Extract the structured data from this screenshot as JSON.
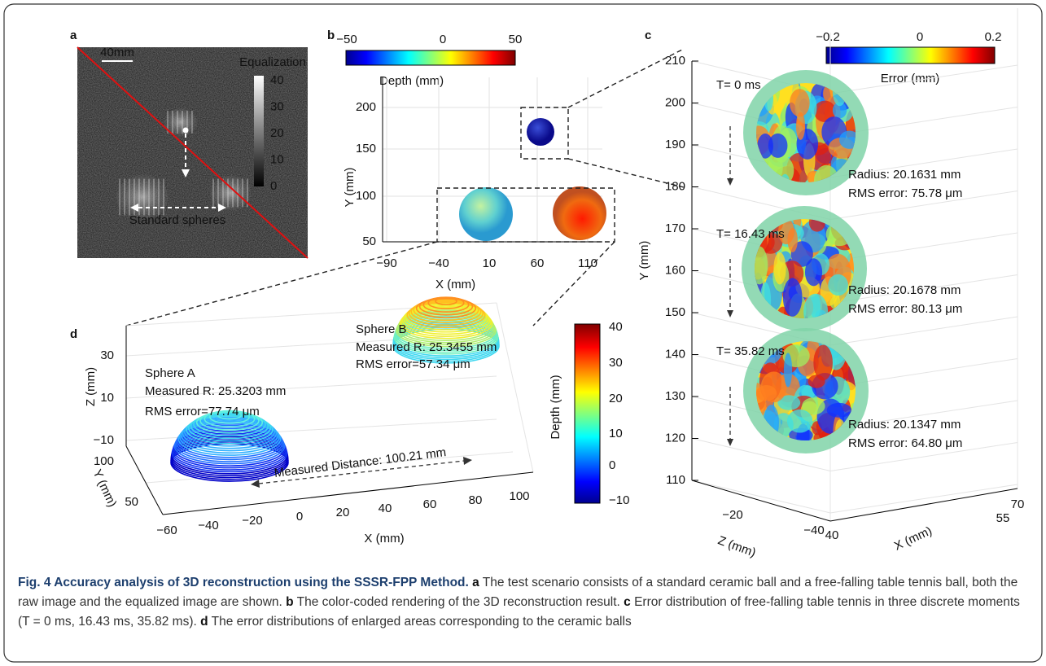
{
  "panels": {
    "a": {
      "label": "a",
      "scale_bar": "40mm",
      "colorbar_title": "Equalization",
      "colorbar_ticks": [
        "40",
        "30",
        "20",
        "10",
        "0"
      ],
      "annotation": "Standard spheres"
    },
    "b": {
      "label": "b",
      "colorbar_ticks": [
        "−50",
        "0",
        "50"
      ],
      "colorbar_title": "Depth (mm)",
      "y_axis_label": "Y (mm)",
      "yticks": [
        "200",
        "150",
        "100",
        "50"
      ],
      "xticks": [
        "−90",
        "−40",
        "10",
        "60",
        "110"
      ],
      "x_axis_label": "X (mm)"
    },
    "c": {
      "label": "c",
      "colorbar_ticks": [
        "−0.2",
        "0",
        "0.2"
      ],
      "colorbar_title": "Error (mm)",
      "y_axis_label": "Y (mm)",
      "yticks": [
        "210",
        "200",
        "190",
        "180",
        "170",
        "160",
        "150",
        "140",
        "130",
        "120",
        "110"
      ],
      "z_ticks": [
        "−20",
        "−40"
      ],
      "x_ticks": [
        "70",
        "55",
        "40"
      ],
      "z_axis_label": "Z (mm)",
      "x_axis_label": "X (mm)",
      "moments": [
        {
          "time": "T= 0 ms",
          "radius": "Radius:  20.1631 mm",
          "rms": "RMS error: 75.78 μm"
        },
        {
          "time": "T= 16.43 ms",
          "radius": "Radius:  20.1678 mm",
          "rms": "RMS error: 80.13 μm"
        },
        {
          "time": "T= 35.82 ms",
          "radius": "Radius:  20.1347 mm",
          "rms": "RMS error: 64.80 μm"
        }
      ]
    },
    "d": {
      "label": "d",
      "z_ticks": [
        "30",
        "10",
        "−10"
      ],
      "y_ticks": [
        "100",
        "50"
      ],
      "x_ticks": [
        "−60",
        "−40",
        "−20",
        "0",
        "20",
        "40",
        "60",
        "80",
        "100"
      ],
      "z_axis_label": "Z (mm)",
      "y_axis_label": "Y (mm)",
      "x_axis_label": "X (mm)",
      "colorbar_ticks": [
        "40",
        "30",
        "20",
        "10",
        "0",
        "−10"
      ],
      "colorbar_title": "Depth (mm)",
      "sphere_a": [
        "Sphere A",
        "Measured R: 25.3203 mm",
        "RMS error=77.74 μm"
      ],
      "sphere_b": [
        "Sphere B",
        "Measured R: 25.3455 mm",
        "RMS error=57.34 μm"
      ],
      "distance": "Measured Distance: 100.21 mm"
    }
  },
  "caption": {
    "title": "Fig. 4 Accuracy analysis of 3D reconstruction using the SSSR-FPP Method.",
    "parts": [
      {
        "label": "a",
        "text": "The test scenario consists of a standard ceramic ball and a free-falling table tennis ball, both the raw image and the equalized image are shown."
      },
      {
        "label": "b",
        "text": "The color-coded rendering of the 3D reconstruction result."
      },
      {
        "label": "c",
        "text": "Error distribution of free-falling table tennis in three discrete moments (T = 0 ms, 16.43 ms, 35.82 ms)."
      },
      {
        "label": "d",
        "text": "The error distributions of enlarged areas corresponding to the ceramic balls"
      }
    ]
  }
}
